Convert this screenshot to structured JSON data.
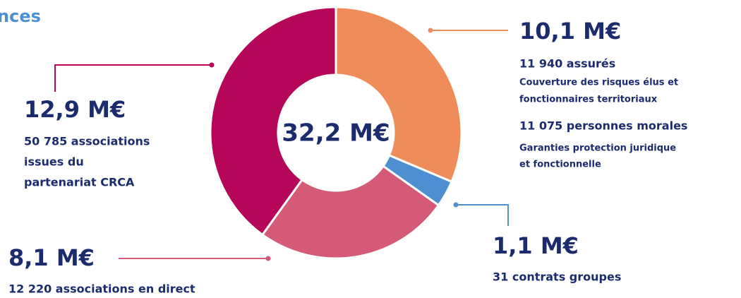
{
  "chart_data": {
    "type": "donut",
    "title": "nces",
    "values": [
      10.1,
      1.1,
      8.1,
      12.9
    ],
    "value_labels": [
      "10,1 M€",
      "1,1 M€",
      "8,1 M€",
      "12,9 M€"
    ],
    "colors": [
      "#f08c5a",
      "#4d8fd1",
      "#d45a78",
      "#b5065a"
    ],
    "center_label": "32,2 M€",
    "details": [
      [
        "11 940 assurés",
        "Couverture des risques élus et",
        "fonctionnaires territoriaux",
        "11 075 personnes morales",
        "Garanties protection juridique",
        "et fonctionnelle"
      ],
      [
        "31 contrats groupes"
      ],
      [
        "12 220 associations en direct"
      ],
      [
        "50 785 associations",
        "issues du",
        "partenariat CRCA"
      ]
    ]
  }
}
